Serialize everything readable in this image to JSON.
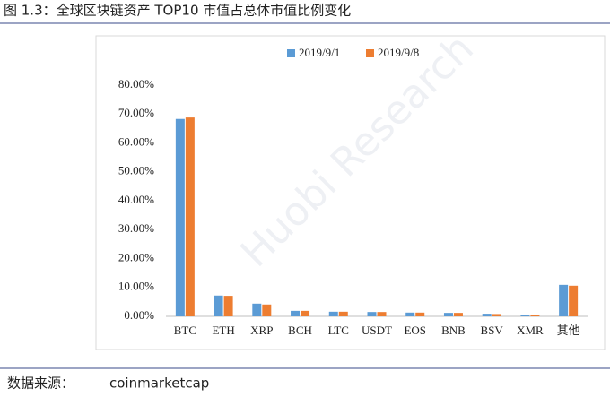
{
  "caption": "图 1.3：全球区块链资产 TOP10 市值占总体市值比例变化",
  "watermark": "Huobi Research",
  "source": {
    "label": "数据来源：",
    "value": "coinmarketcap"
  },
  "chart_data": {
    "type": "bar",
    "categories": [
      "BTC",
      "ETH",
      "XRP",
      "BCH",
      "LTC",
      "USDT",
      "EOS",
      "BNB",
      "BSV",
      "XMR",
      "其他"
    ],
    "series": [
      {
        "name": "2019/9/1",
        "color": "#5b9bd5",
        "values": [
          68.3,
          7.2,
          4.4,
          1.9,
          1.6,
          1.5,
          1.3,
          1.2,
          0.9,
          0.4,
          10.9
        ]
      },
      {
        "name": "2019/9/8",
        "color": "#ed7d31",
        "values": [
          68.8,
          7.1,
          4.1,
          1.9,
          1.6,
          1.5,
          1.3,
          1.2,
          0.8,
          0.4,
          10.6
        ]
      }
    ],
    "ylim": [
      0,
      80
    ],
    "yticks": [
      {
        "value": 0,
        "label": "0.00%"
      },
      {
        "value": 10,
        "label": "10.00%"
      },
      {
        "value": 20,
        "label": "20.00%"
      },
      {
        "value": 30,
        "label": "30.00%"
      },
      {
        "value": 40,
        "label": "40.00%"
      },
      {
        "value": 50,
        "label": "50.00%"
      },
      {
        "value": 60,
        "label": "60.00%"
      },
      {
        "value": 70,
        "label": "70.00%"
      },
      {
        "value": 80,
        "label": "80.00%"
      }
    ],
    "grid": false,
    "legend": "top"
  }
}
